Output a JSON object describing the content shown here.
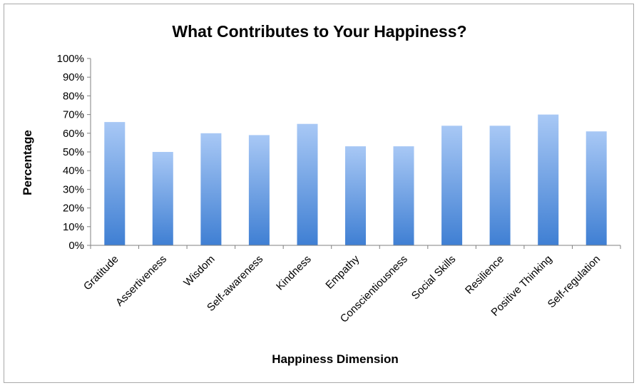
{
  "chart_data": {
    "type": "bar",
    "title": "What Contributes to Your Happiness?",
    "xlabel": "Happiness Dimension",
    "ylabel": "Percentage",
    "categories": [
      "Gratitude",
      "Assertiveness",
      "Wisdom",
      "Self-awareness",
      "Kindness",
      "Empathy",
      "Conscientiousness",
      "Social Skills",
      "Resilience",
      "Positive Thinking",
      "Self-regulation"
    ],
    "values": [
      66,
      50,
      60,
      59,
      65,
      53,
      53,
      64,
      64,
      70,
      61
    ],
    "ylim": [
      0,
      100
    ],
    "yticks": [
      "0%",
      "10%",
      "20%",
      "30%",
      "40%",
      "50%",
      "60%",
      "70%",
      "80%",
      "90%",
      "100%"
    ],
    "grid": false,
    "legend": "none",
    "bar_color_top": "#a8c8f5",
    "bar_color_bottom": "#3f7fd3"
  }
}
